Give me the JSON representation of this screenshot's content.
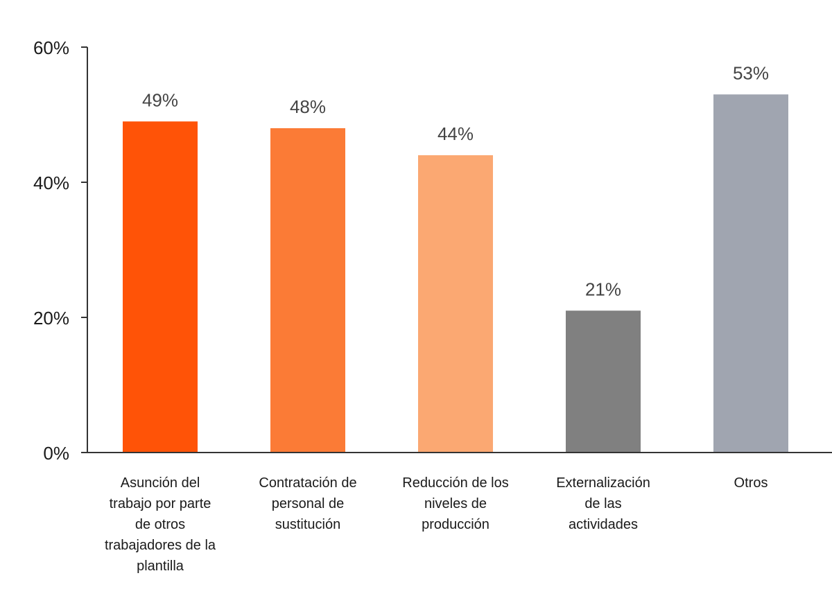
{
  "chart_data": {
    "type": "bar",
    "categories": [
      "Asunción del trabajo por parte de otros trabajadores de la plantilla",
      "Contratación de personal de sustitución",
      "Reducción de los niveles de producción",
      "Externalización de las actividades",
      "Otros"
    ],
    "category_lines": [
      [
        "Asunción del",
        "trabajo por parte",
        "de otros",
        "trabajadores de la",
        "plantilla"
      ],
      [
        "Contratación de",
        "personal de",
        "sustitución"
      ],
      [
        "Reducción de los",
        "niveles de",
        "producción"
      ],
      [
        "Externalización",
        "de las",
        "actividades"
      ],
      [
        "Otros"
      ]
    ],
    "values": [
      49,
      48,
      44,
      21,
      53
    ],
    "value_labels": [
      "49%",
      "48%",
      "44%",
      "21%",
      "53%"
    ],
    "colors": [
      "#ff5307",
      "#fb7b36",
      "#fba872",
      "#808080",
      "#a0a5b0"
    ],
    "ylim": [
      0,
      60
    ],
    "yticks": [
      0,
      20,
      40,
      60
    ],
    "ytick_labels": [
      "0%",
      "20%",
      "40%",
      "60%"
    ],
    "grid": false,
    "title": "",
    "xlabel": "",
    "ylabel": ""
  }
}
